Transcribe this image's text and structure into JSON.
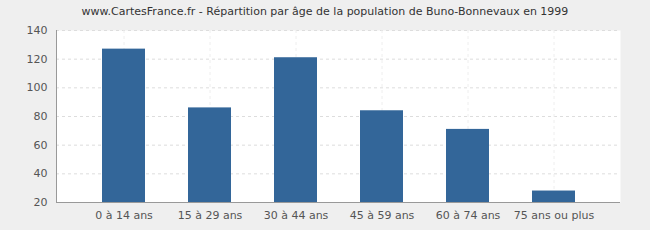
{
  "chart_data": {
    "type": "bar",
    "title": "www.CartesFrance.fr - Répartition par âge de la population de Buno-Bonnevaux en 1999",
    "categories": [
      "0 à 14 ans",
      "15 à 29 ans",
      "30 à 44 ans",
      "45 à 59 ans",
      "60 à 74 ans",
      "75 ans ou plus"
    ],
    "values": [
      127,
      86,
      121,
      84,
      71,
      28
    ],
    "color": "#336699",
    "ylim": [
      20,
      140
    ],
    "yticks": [
      20,
      40,
      60,
      80,
      100,
      120,
      140
    ],
    "grid": true
  }
}
